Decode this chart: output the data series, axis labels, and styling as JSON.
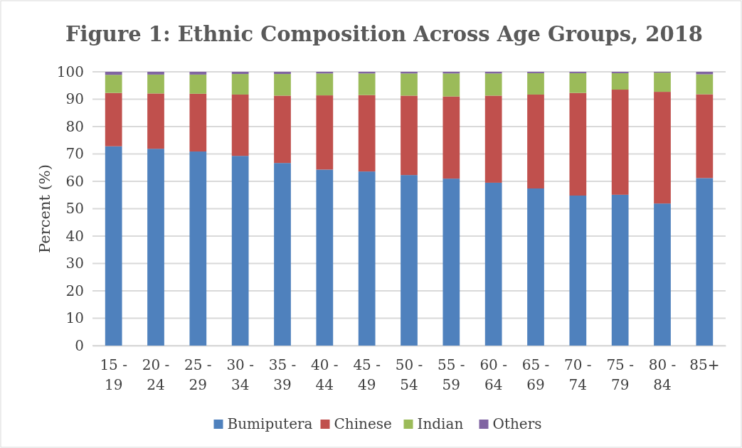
{
  "chart_data": {
    "type": "bar",
    "title": "Figure 1: Ethnic Composition Across Age Groups, 2018",
    "ylabel": "Percent (%)",
    "categories": [
      "15 - 19",
      "20 - 24",
      "25 - 29",
      "30 - 34",
      "35 - 39",
      "40 - 44",
      "45 - 49",
      "50 - 54",
      "55 - 59",
      "60 - 64",
      "65 - 69",
      "70 - 74",
      "75 - 79",
      "80 - 84",
      "85+"
    ],
    "stacked": true,
    "ylim": [
      0,
      100
    ],
    "yticks": [
      0,
      10,
      20,
      30,
      40,
      50,
      60,
      70,
      80,
      90,
      100
    ],
    "grid": "y",
    "legend": "bottom",
    "series": [
      {
        "name": "Bumiputera",
        "color": "#4f81bd",
        "values": [
          72.8,
          71.9,
          70.9,
          69.3,
          66.7,
          64.3,
          63.6,
          62.3,
          61.0,
          59.5,
          57.4,
          54.8,
          55.1,
          51.9,
          61.2
        ]
      },
      {
        "name": "Chinese",
        "color": "#c0504d",
        "values": [
          19.5,
          20.2,
          21.1,
          22.4,
          24.6,
          27.1,
          27.9,
          29.0,
          30.0,
          31.8,
          34.3,
          37.5,
          38.4,
          40.8,
          30.6
        ]
      },
      {
        "name": "Indian",
        "color": "#9bbb59",
        "values": [
          6.6,
          6.9,
          7.0,
          7.5,
          7.9,
          8.0,
          7.9,
          8.1,
          8.4,
          8.1,
          7.8,
          7.2,
          6.0,
          7.0,
          7.3
        ]
      },
      {
        "name": "Others",
        "color": "#8064a2",
        "values": [
          1.1,
          1.0,
          1.0,
          0.8,
          0.8,
          0.6,
          0.6,
          0.6,
          0.6,
          0.6,
          0.5,
          0.5,
          0.5,
          0.3,
          0.9
        ]
      }
    ]
  }
}
